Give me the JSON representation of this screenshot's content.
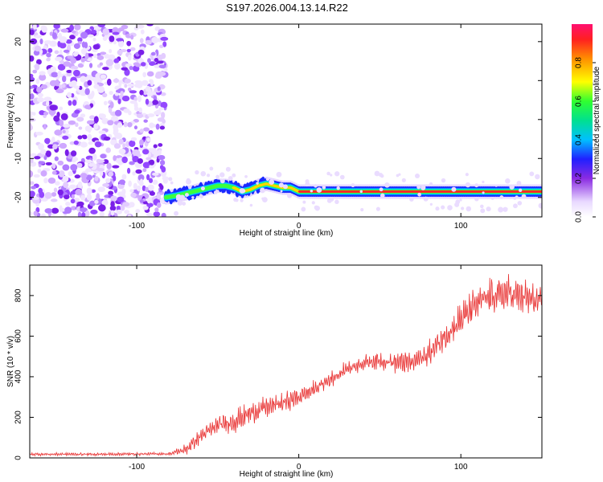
{
  "figure_title": "S197.2026.004.13.14.R22",
  "chart_data": [
    {
      "type": "heatmap",
      "xlabel": "Height of straight line (km)",
      "ylabel": "Frequency (Hz)",
      "xlim": [
        -166,
        150
      ],
      "ylim": [
        -25,
        24.5
      ],
      "xticks": [
        -100,
        0,
        100
      ],
      "yticks": [
        -20,
        -10,
        0,
        10,
        20
      ],
      "colorbar": {
        "label": "Normalized spectral amplitude",
        "range": [
          0,
          1
        ],
        "ticks": [
          "0.0",
          "0.2",
          "0.4",
          "0.6",
          "0.8"
        ]
      },
      "noise_region_x": [
        -166,
        -82
      ],
      "ridge": {
        "x": [
          -82,
          -75,
          -70,
          -65,
          -60,
          -55,
          -50,
          -45,
          -40,
          -35,
          -30,
          -25,
          -20,
          -15,
          -10,
          -5,
          0,
          20,
          50,
          100,
          150
        ],
        "freq": [
          -20,
          -19.5,
          -19,
          -18.5,
          -18,
          -17.5,
          -17,
          -17,
          -17.5,
          -18.5,
          -18,
          -17,
          -16.5,
          -17,
          -17.5,
          -17.5,
          -18.5,
          -18.5,
          -18.5,
          -18.5,
          -18.5
        ],
        "peak_amplitude": 1.0
      }
    },
    {
      "type": "line",
      "xlabel": "Height of straight line (km)",
      "ylabel": "SNR (10 * v/v)",
      "xlim": [
        -166,
        150
      ],
      "ylim": [
        0,
        950
      ],
      "xticks": [
        -100,
        0,
        100
      ],
      "yticks": [
        0,
        200,
        400,
        600,
        800
      ],
      "color": "#e83030",
      "trend": {
        "x": [
          -166,
          -120,
          -80,
          -70,
          -60,
          -50,
          -40,
          -30,
          -20,
          -10,
          0,
          10,
          20,
          30,
          40,
          50,
          60,
          70,
          80,
          90,
          100,
          110,
          120,
          130,
          140,
          150
        ],
        "y": [
          18,
          18,
          20,
          40,
          110,
          160,
          180,
          220,
          250,
          270,
          300,
          340,
          390,
          440,
          470,
          480,
          470,
          470,
          510,
          600,
          680,
          760,
          800,
          810,
          790,
          760
        ]
      },
      "noise_amplitude": {
        "x": [
          -166,
          -80,
          -70,
          -40,
          0,
          40,
          80,
          110,
          150
        ],
        "y": [
          8,
          8,
          30,
          60,
          50,
          40,
          70,
          100,
          90
        ]
      }
    }
  ]
}
